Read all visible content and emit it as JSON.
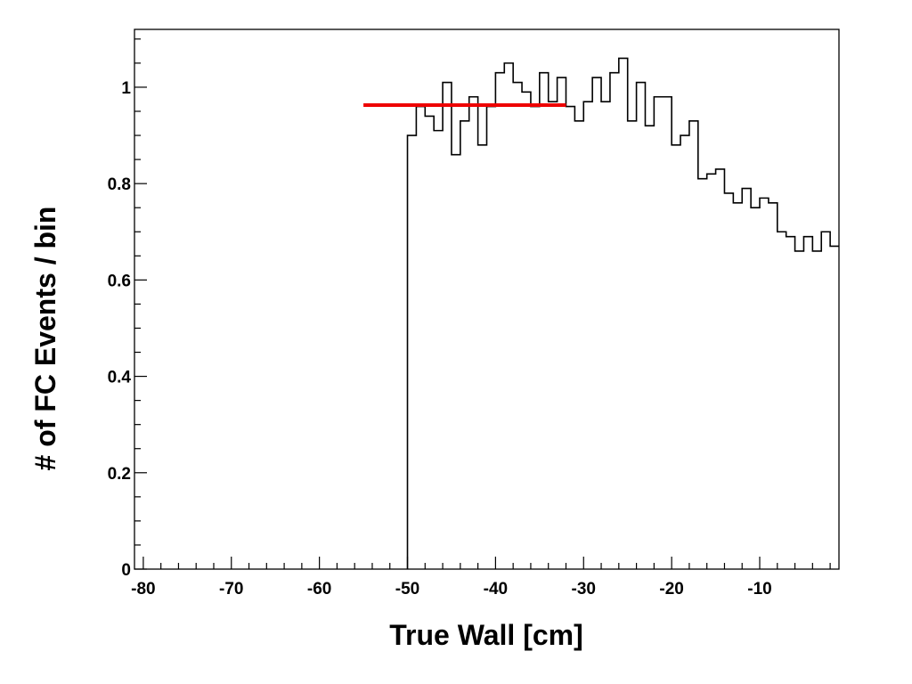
{
  "chart_data": {
    "type": "histogram",
    "title": "",
    "xlabel": "True Wall [cm]",
    "ylabel": "# of FC Events / bin",
    "xlim": [
      -81,
      -1
    ],
    "ylim": [
      0,
      1.12
    ],
    "x_ticks": [
      -80,
      -70,
      -60,
      -50,
      -40,
      -30,
      -20,
      -10
    ],
    "x_tick_labels": [
      "-80",
      "-70",
      "-60",
      "-50",
      "-40",
      "-30",
      "-20",
      "-10"
    ],
    "y_ticks": [
      0,
      0.2,
      0.4,
      0.6,
      0.8,
      1
    ],
    "y_tick_labels": [
      "0",
      "0.2",
      "0.4",
      "0.6",
      "0.8",
      "1"
    ],
    "grid": false,
    "legend": "none",
    "bin_width": 1,
    "series": [
      {
        "x_start": [
          -50,
          -49,
          -48,
          -47,
          -46,
          -45,
          -44,
          -43,
          -42,
          -41,
          -40,
          -39,
          -38,
          -37,
          -36,
          -35,
          -34,
          -33,
          -32,
          -31,
          -30,
          -29,
          -28,
          -27,
          -26,
          -25,
          -24,
          -23,
          -22,
          -21,
          -20,
          -19,
          -18,
          -17,
          -16,
          -15,
          -14,
          -13,
          -12,
          -11,
          -10,
          -9,
          -8,
          -7,
          -6,
          -5,
          -4,
          -3,
          -2
        ],
        "values": [
          0.9,
          0.96,
          0.94,
          0.91,
          1.01,
          0.86,
          0.93,
          0.98,
          0.88,
          0.96,
          1.03,
          1.05,
          1.01,
          0.99,
          0.96,
          1.03,
          0.97,
          1.02,
          0.96,
          0.93,
          0.97,
          1.02,
          0.97,
          1.03,
          1.06,
          0.93,
          1.01,
          0.92,
          0.98,
          0.98,
          0.88,
          0.9,
          0.93,
          0.81,
          0.82,
          0.83,
          0.78,
          0.76,
          0.79,
          0.75,
          0.77,
          0.76,
          0.7,
          0.69,
          0.66,
          0.69,
          0.66,
          0.7,
          0.67
        ],
        "color": "#000000"
      }
    ],
    "fit_line": {
      "x": [
        -55,
        -32
      ],
      "y": 0.963,
      "color": "#ee0000"
    }
  }
}
